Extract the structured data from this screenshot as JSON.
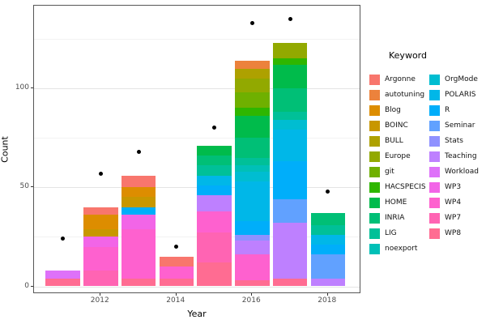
{
  "figure": {
    "xlabel": "Year",
    "ylabel": "Count",
    "legend_title": "Keyword"
  },
  "axis": {
    "x_tick_labels": [
      "2012",
      "2014",
      "2016",
      "2018"
    ],
    "y_tick_labels": [
      "0",
      "50",
      "100"
    ]
  },
  "chart_data": {
    "type": "bar",
    "stacked": true,
    "xlabel": "Year",
    "ylabel": "Count",
    "legend_title": "Keyword",
    "legend_position": "right",
    "grid": true,
    "categories": [
      "2011",
      "2012",
      "2013",
      "2014",
      "2015",
      "2016",
      "2017",
      "2018"
    ],
    "x_labeled_ticks": [
      "2012",
      "2014",
      "2016",
      "2018"
    ],
    "y_major_ticks": [
      0,
      50,
      100
    ],
    "y_minor_ticks": [
      25,
      75,
      125
    ],
    "ylim": [
      0,
      142
    ],
    "stack_order": "first-series-on-top",
    "bar_totals": [
      8,
      40,
      56,
      15,
      71,
      114,
      123,
      37
    ],
    "series": [
      {
        "name": "Argonne",
        "color": "#F8766D",
        "values": [
          0,
          4,
          6,
          5,
          0,
          0,
          0,
          0
        ]
      },
      {
        "name": "autotuning",
        "color": "#EC823C",
        "values": [
          0,
          0,
          0,
          0,
          0,
          4,
          0,
          0
        ]
      },
      {
        "name": "Blog",
        "color": "#DD8D00",
        "values": [
          0,
          7,
          5,
          0,
          0,
          0,
          0,
          0
        ]
      },
      {
        "name": "BOINC",
        "color": "#C89700",
        "values": [
          0,
          4,
          5,
          0,
          0,
          0,
          0,
          0
        ]
      },
      {
        "name": "BULL",
        "color": "#AEA100",
        "values": [
          0,
          0,
          0,
          0,
          0,
          5,
          0,
          0
        ]
      },
      {
        "name": "Europe",
        "color": "#92A900",
        "values": [
          0,
          0,
          0,
          0,
          0,
          7,
          8,
          0
        ]
      },
      {
        "name": "git",
        "color": "#6FB000",
        "values": [
          0,
          0,
          0,
          0,
          0,
          8,
          0,
          0
        ]
      },
      {
        "name": "HACSPECIS",
        "color": "#2EB600",
        "values": [
          0,
          0,
          0,
          0,
          0,
          4,
          3,
          0
        ]
      },
      {
        "name": "HOME",
        "color": "#00BB4B",
        "values": [
          0,
          0,
          0,
          0,
          5,
          11,
          12,
          0
        ]
      },
      {
        "name": "INRIA",
        "color": "#00BF76",
        "values": [
          0,
          0,
          0,
          0,
          5,
          10,
          12,
          6
        ]
      },
      {
        "name": "LIG",
        "color": "#00C098",
        "values": [
          0,
          0,
          0,
          0,
          5,
          4,
          4,
          5
        ]
      },
      {
        "name": "noexport",
        "color": "#00C0B7",
        "values": [
          0,
          0,
          0,
          0,
          0,
          3,
          0,
          0
        ]
      },
      {
        "name": "OrgMode",
        "color": "#00BDD1",
        "values": [
          0,
          0,
          0,
          0,
          0,
          5,
          5,
          0
        ]
      },
      {
        "name": "POLARIS",
        "color": "#00B7E8",
        "values": [
          0,
          0,
          0,
          0,
          5,
          20,
          16,
          5
        ]
      },
      {
        "name": "R",
        "color": "#00AEFA",
        "values": [
          0,
          0,
          4,
          0,
          5,
          7,
          19,
          5
        ]
      },
      {
        "name": "Seminar",
        "color": "#61A1FF",
        "values": [
          0,
          0,
          0,
          0,
          0,
          0,
          12,
          12
        ]
      },
      {
        "name": "Stats",
        "color": "#8F91FF",
        "values": [
          0,
          0,
          0,
          0,
          0,
          3,
          0,
          0
        ]
      },
      {
        "name": "Teaching",
        "color": "#BE80FF",
        "values": [
          0,
          0,
          0,
          0,
          8,
          7,
          28,
          4
        ]
      },
      {
        "name": "Workload",
        "color": "#DE71F9",
        "values": [
          4,
          0,
          0,
          0,
          0,
          0,
          0,
          0
        ]
      },
      {
        "name": "WP3",
        "color": "#F265E7",
        "values": [
          0,
          5,
          7,
          0,
          0,
          0,
          0,
          0
        ]
      },
      {
        "name": "WP4",
        "color": "#FE61CF",
        "values": [
          0,
          12,
          25,
          6,
          11,
          13,
          0,
          0
        ]
      },
      {
        "name": "WP7",
        "color": "#FF64B3",
        "values": [
          0,
          8,
          0,
          0,
          15,
          0,
          0,
          0
        ]
      },
      {
        "name": "WP8",
        "color": "#FF6C92",
        "values": [
          4,
          0,
          4,
          4,
          12,
          3,
          4,
          0
        ]
      }
    ],
    "overlay_points": {
      "name": "yearly-total-dots",
      "color": "#000000",
      "values": [
        24,
        57,
        68,
        20,
        80,
        133,
        135,
        48
      ]
    }
  }
}
